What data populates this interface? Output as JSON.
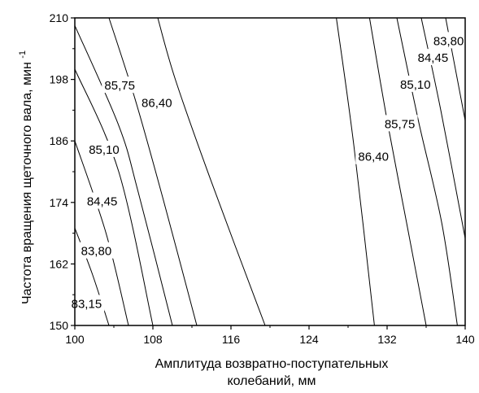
{
  "chart_data": {
    "type": "contour",
    "x": {
      "label": "Амплитуда возвратно-поступательных колебаний, мм",
      "label_lines": [
        "Амплитуда возвратно-поступательных",
        "колебаний, мм"
      ],
      "range": [
        100,
        140
      ],
      "ticks": [
        "100",
        "108",
        "116",
        "124",
        "132",
        "140"
      ]
    },
    "y": {
      "label": "Частота вращения щеточного вала, мин",
      "label_superscript": "-1",
      "range": [
        150,
        210
      ],
      "ticks": [
        "150",
        "162",
        "174",
        "186",
        "198",
        "210"
      ]
    },
    "grid": false,
    "contours": [
      {
        "side": "left",
        "value": "83,15",
        "points": [
          [
            100,
            169
          ],
          [
            101.8,
            160
          ],
          [
            103.5,
            150
          ]
        ]
      },
      {
        "side": "left",
        "value": "83,80",
        "points": [
          [
            100,
            186
          ],
          [
            103.2,
            168
          ],
          [
            105.5,
            150
          ]
        ]
      },
      {
        "side": "left",
        "value": "84,45",
        "points": [
          [
            100,
            200
          ],
          [
            104.5,
            180
          ],
          [
            108,
            150
          ]
        ]
      },
      {
        "side": "left",
        "value": "85,10",
        "points": [
          [
            100,
            208.5
          ],
          [
            104.5,
            189
          ],
          [
            106.5,
            176
          ],
          [
            110,
            150
          ]
        ]
      },
      {
        "side": "left",
        "value": "85,75",
        "points": [
          [
            103.5,
            210
          ],
          [
            106.2,
            194
          ],
          [
            109,
            175
          ],
          [
            112.5,
            150
          ]
        ]
      },
      {
        "side": "left",
        "value": "86,40",
        "points": [
          [
            108.5,
            210
          ],
          [
            110.3,
            198
          ],
          [
            114,
            178
          ],
          [
            119.5,
            150
          ]
        ]
      },
      {
        "side": "right",
        "value": "86,40",
        "points": [
          [
            126.8,
            210
          ],
          [
            128.6,
            185
          ],
          [
            130.7,
            150
          ]
        ]
      },
      {
        "side": "right",
        "value": "85,75",
        "points": [
          [
            130.2,
            210
          ],
          [
            132,
            190
          ],
          [
            134,
            170
          ],
          [
            136,
            150
          ]
        ]
      },
      {
        "side": "right",
        "value": "85,10",
        "points": [
          [
            133,
            210
          ],
          [
            135.2,
            190
          ],
          [
            137.6,
            170
          ],
          [
            139.2,
            150
          ]
        ]
      },
      {
        "side": "right",
        "value": "84,45",
        "points": [
          [
            135.5,
            210
          ],
          [
            137.5,
            192
          ],
          [
            140,
            167
          ]
        ]
      },
      {
        "side": "right",
        "value": "83,80",
        "points": [
          [
            138,
            210
          ],
          [
            139.4,
            196
          ],
          [
            140,
            190
          ]
        ]
      }
    ],
    "contour_labels": [
      {
        "text": "85,75",
        "x": 104.6,
        "y": 196.8
      },
      {
        "text": "86,40",
        "x": 108.4,
        "y": 193.4
      },
      {
        "text": "85,10",
        "x": 103.0,
        "y": 184.3
      },
      {
        "text": "84,45",
        "x": 102.8,
        "y": 174.2
      },
      {
        "text": "83,80",
        "x": 102.2,
        "y": 164.5
      },
      {
        "text": "83,15",
        "x": 101.2,
        "y": 154.2
      },
      {
        "text": "83,80",
        "x": 138.3,
        "y": 205.5
      },
      {
        "text": "84,45",
        "x": 136.7,
        "y": 202.2
      },
      {
        "text": "85,10",
        "x": 134.9,
        "y": 197.0
      },
      {
        "text": "85,75",
        "x": 133.3,
        "y": 189.3
      },
      {
        "text": "86,40",
        "x": 130.6,
        "y": 182.9
      }
    ]
  }
}
